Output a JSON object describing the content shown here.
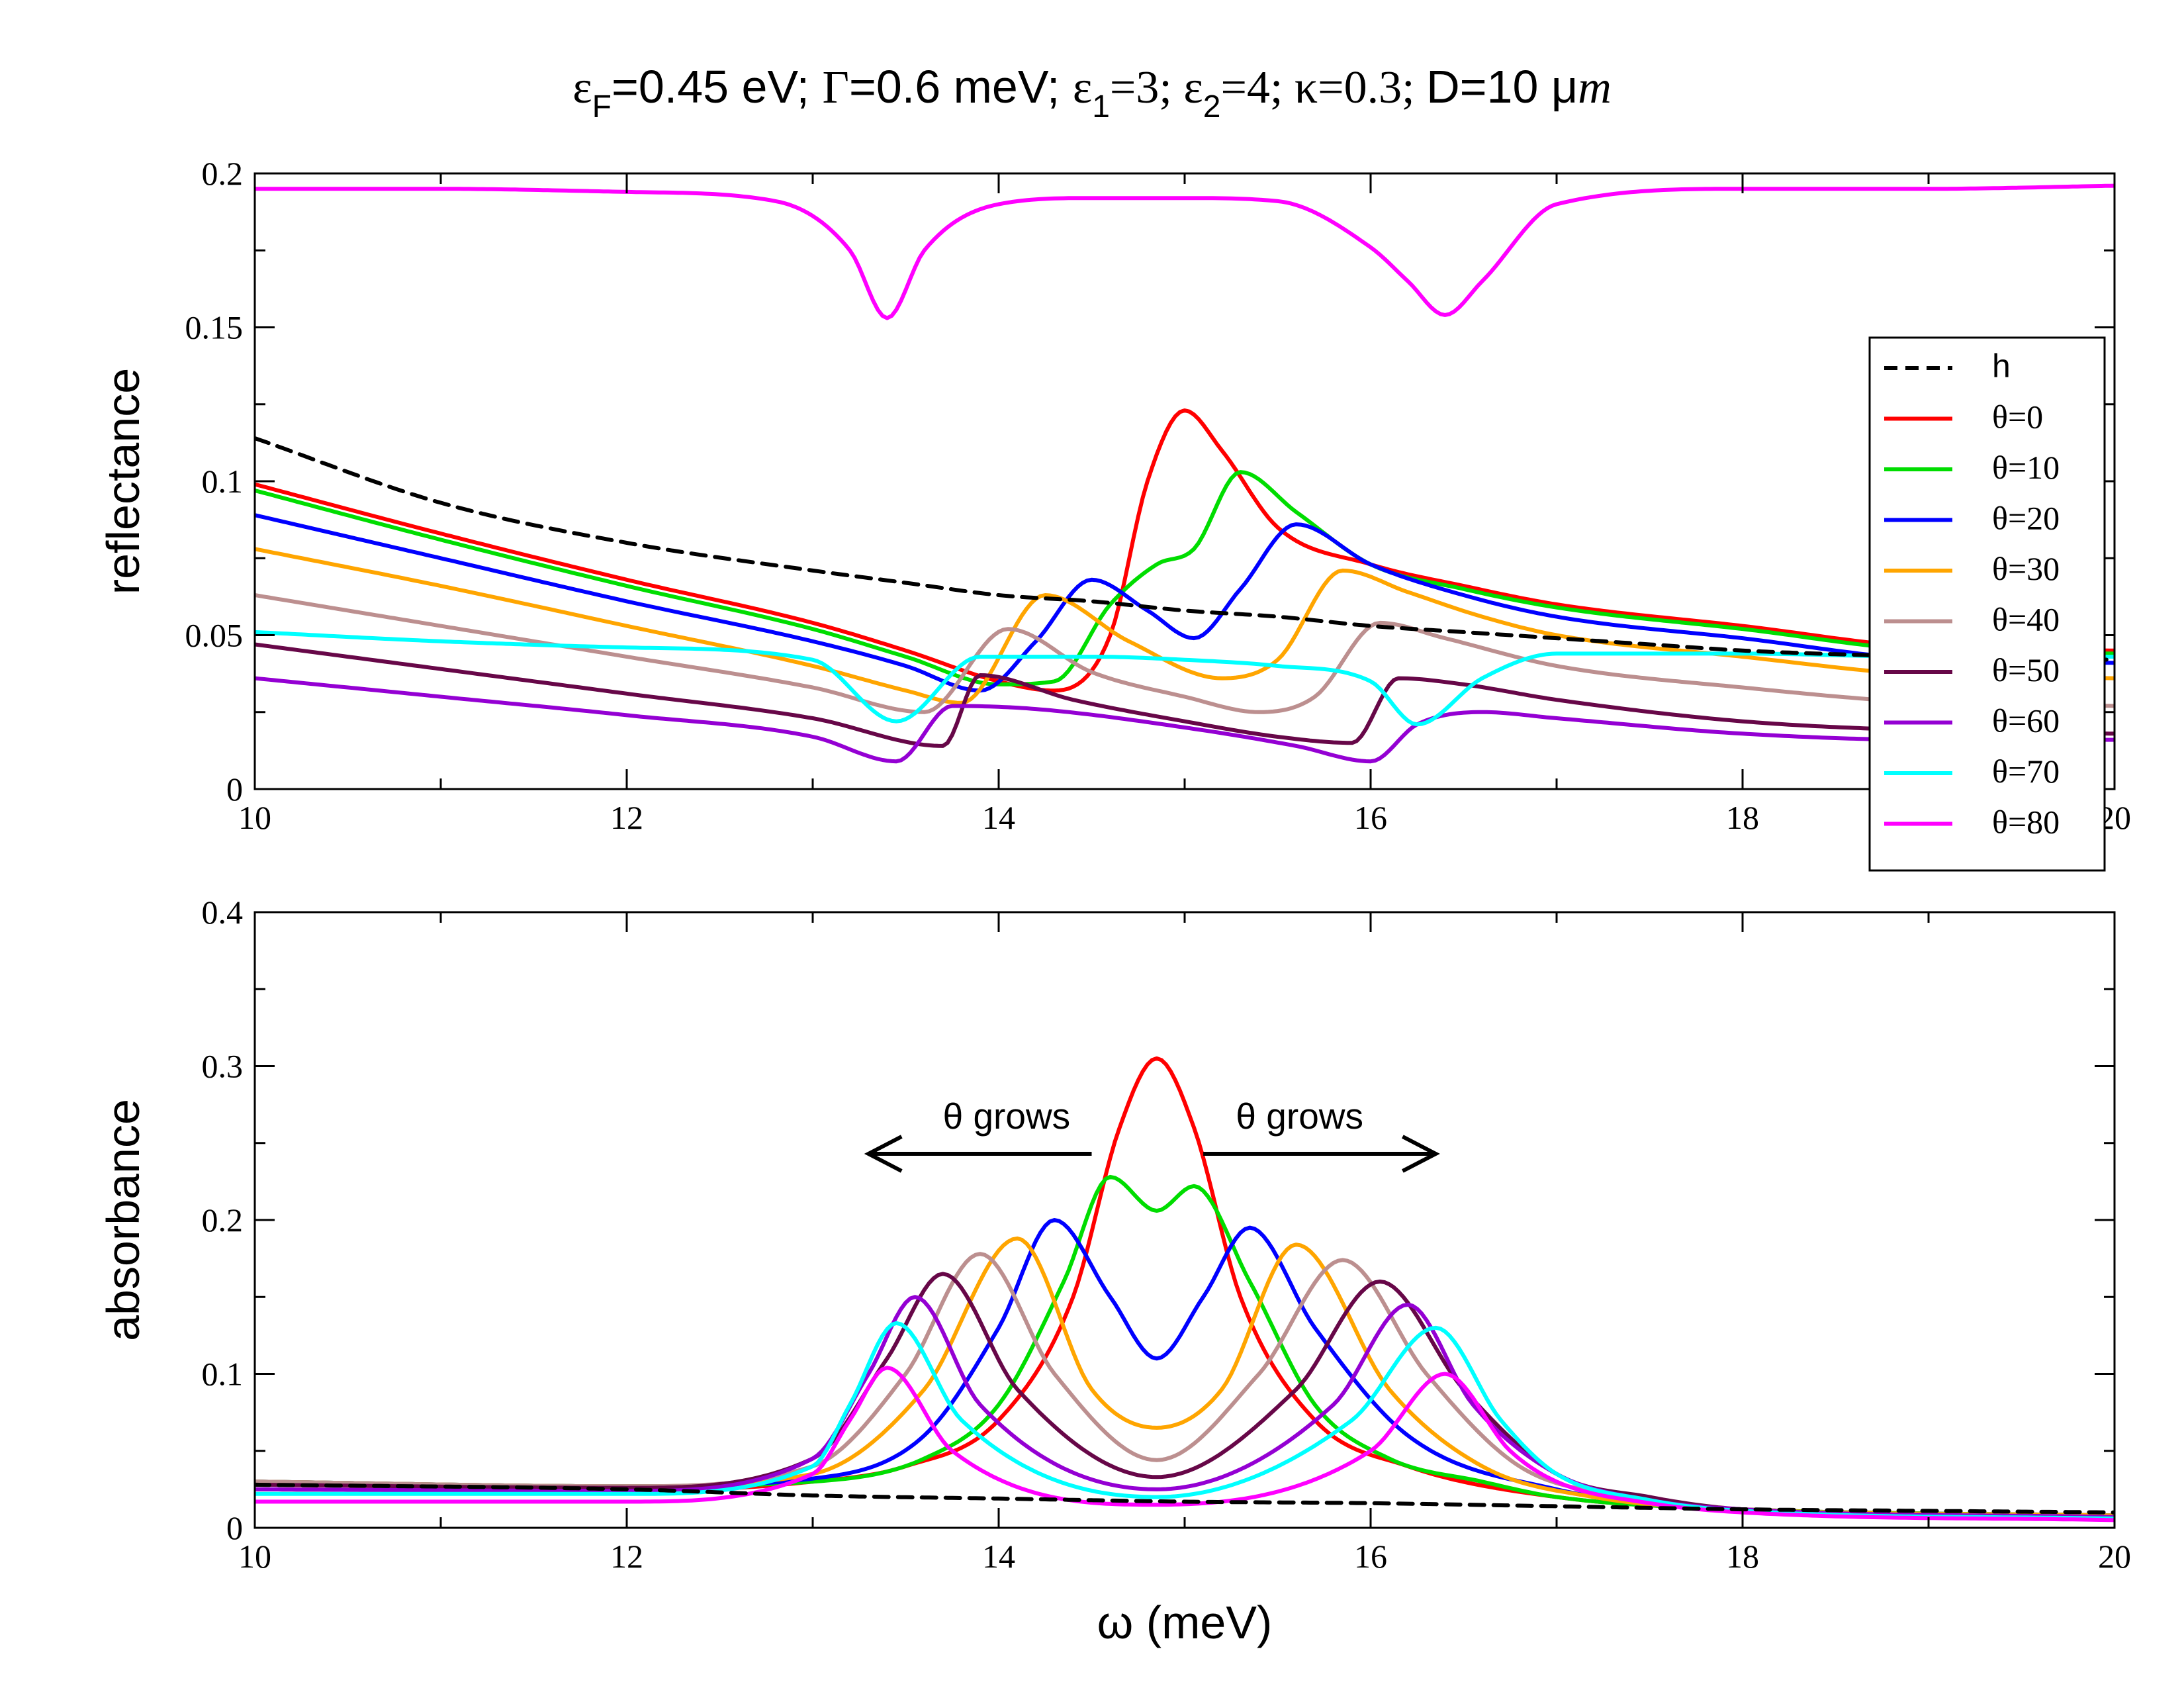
{
  "chart_data": {
    "title": "εF=0.45 eV; Γ=0.6 meV; ε1=3; ε2=4; κ=0.3; D=10 μm",
    "xlabel": "ω (meV)",
    "xlim": [
      10,
      20
    ],
    "xticks": [
      "10",
      "12",
      "14",
      "16",
      "18",
      "20"
    ],
    "legend": [
      {
        "label": "h",
        "color": "#000000",
        "dashed": true
      },
      {
        "label": "θ=0",
        "color": "#ff0000"
      },
      {
        "label": "θ=10",
        "color": "#00dd00"
      },
      {
        "label": "θ=20",
        "color": "#0000ff"
      },
      {
        "label": "θ=30",
        "color": "#ffa500"
      },
      {
        "label": "θ=40",
        "color": "#bc8f8f"
      },
      {
        "label": "θ=50",
        "color": "#670748"
      },
      {
        "label": "θ=60",
        "color": "#9400d3"
      },
      {
        "label": "θ=70",
        "color": "#00ffff"
      },
      {
        "label": "θ=80",
        "color": "#ff00ff"
      }
    ],
    "panels": [
      {
        "type": "line",
        "ylabel": "reflectance",
        "ylim": [
          0,
          0.2
        ],
        "yticks": [
          "0",
          "0.05",
          "0.1",
          "0.15",
          "0.2"
        ],
        "series": [
          {
            "name": "h",
            "x": [
              10,
              11,
              12,
              13,
              13.5,
              14,
              14.5,
              15,
              15.5,
              16,
              16.5,
              17,
              17.5,
              18,
              19,
              20
            ],
            "values": [
              0.114,
              0.093,
              0.08,
              0.071,
              0.067,
              0.063,
              0.061,
              0.058,
              0.056,
              0.053,
              0.051,
              0.049,
              0.047,
              0.045,
              0.043,
              0.042
            ]
          },
          {
            "name": "θ=0",
            "x": [
              10,
              11,
              12,
              13,
              13.5,
              14,
              14.3,
              14.6,
              14.8,
              15,
              15.2,
              15.5,
              16,
              16.5,
              17,
              18,
              19,
              20
            ],
            "values": [
              0.099,
              0.083,
              0.068,
              0.054,
              0.045,
              0.035,
              0.032,
              0.05,
              0.1,
              0.123,
              0.11,
              0.085,
              0.073,
              0.066,
              0.06,
              0.053,
              0.046,
              0.045
            ]
          },
          {
            "name": "θ=10",
            "x": [
              10,
              11,
              12,
              13,
              13.5,
              14,
              14.3,
              14.6,
              14.85,
              15.05,
              15.3,
              15.6,
              16,
              16.5,
              17,
              18,
              19,
              20
            ],
            "values": [
              0.097,
              0.081,
              0.066,
              0.052,
              0.043,
              0.034,
              0.035,
              0.06,
              0.073,
              0.078,
              0.103,
              0.09,
              0.073,
              0.065,
              0.059,
              0.052,
              0.045,
              0.044
            ]
          },
          {
            "name": "θ=20",
            "x": [
              10,
              11,
              12,
              13,
              13.5,
              13.9,
              14.2,
              14.5,
              14.8,
              15.05,
              15.3,
              15.6,
              16,
              16.5,
              17,
              18,
              19,
              20
            ],
            "values": [
              0.089,
              0.075,
              0.061,
              0.048,
              0.04,
              0.032,
              0.048,
              0.068,
              0.058,
              0.049,
              0.065,
              0.086,
              0.073,
              0.063,
              0.056,
              0.049,
              0.042,
              0.041
            ]
          },
          {
            "name": "θ=30",
            "x": [
              10,
              11,
              12,
              13,
              13.5,
              13.8,
              14.25,
              14.7,
              15.2,
              15.5,
              15.85,
              16.2,
              16.6,
              17,
              18,
              19,
              20
            ],
            "values": [
              0.078,
              0.066,
              0.053,
              0.04,
              0.032,
              0.028,
              0.063,
              0.048,
              0.036,
              0.042,
              0.071,
              0.064,
              0.056,
              0.05,
              0.043,
              0.037,
              0.036
            ]
          },
          {
            "name": "θ=40",
            "x": [
              10,
              11,
              12,
              13,
              13.6,
              14.05,
              14.5,
              15,
              15.4,
              15.7,
              16.05,
              16.4,
              17,
              18,
              19,
              20
            ],
            "values": [
              0.063,
              0.053,
              0.043,
              0.033,
              0.025,
              0.052,
              0.038,
              0.03,
              0.025,
              0.03,
              0.054,
              0.049,
              0.04,
              0.033,
              0.028,
              0.027
            ]
          },
          {
            "name": "θ=50",
            "x": [
              10,
              11,
              12,
              13,
              13.7,
              13.9,
              14.4,
              15,
              15.5,
              15.9,
              16.15,
              16.5,
              17,
              18,
              19,
              20
            ],
            "values": [
              0.047,
              0.039,
              0.031,
              0.023,
              0.014,
              0.037,
              0.029,
              0.022,
              0.017,
              0.015,
              0.036,
              0.034,
              0.029,
              0.022,
              0.019,
              0.018
            ]
          },
          {
            "name": "θ=60",
            "x": [
              10,
              11,
              12,
              13,
              13.45,
              13.75,
              14.2,
              15,
              15.6,
              16,
              16.25,
              16.6,
              17,
              18,
              19,
              20
            ],
            "values": [
              0.036,
              0.03,
              0.024,
              0.017,
              0.009,
              0.027,
              0.026,
              0.02,
              0.014,
              0.009,
              0.021,
              0.025,
              0.023,
              0.018,
              0.016,
              0.016
            ]
          },
          {
            "name": "θ=70",
            "x": [
              10,
              11,
              12,
              13,
              13.45,
              13.9,
              14.5,
              15,
              15.5,
              16,
              16.25,
              16.6,
              17,
              18,
              19,
              20
            ],
            "values": [
              0.051,
              0.048,
              0.046,
              0.042,
              0.022,
              0.043,
              0.043,
              0.042,
              0.04,
              0.035,
              0.021,
              0.036,
              0.044,
              0.044,
              0.043,
              0.043
            ]
          },
          {
            "name": "θ=80",
            "x": [
              10,
              11,
              12,
              12.8,
              13.2,
              13.4,
              13.6,
              14,
              14.5,
              15,
              15.5,
              16,
              16.2,
              16.4,
              16.6,
              17,
              18,
              19,
              20
            ],
            "values": [
              0.195,
              0.195,
              0.194,
              0.191,
              0.175,
              0.153,
              0.175,
              0.19,
              0.192,
              0.192,
              0.191,
              0.176,
              0.165,
              0.154,
              0.165,
              0.19,
              0.195,
              0.195,
              0.196
            ]
          }
        ]
      },
      {
        "type": "line",
        "ylabel": "absorbance",
        "ylim": [
          0,
          0.4
        ],
        "yticks": [
          "0",
          "0.1",
          "0.2",
          "0.3",
          "0.4"
        ],
        "annotations": [
          {
            "text": "θ grows",
            "direction": "left",
            "x_from": 14.5,
            "x_to": 13.3,
            "y": 0.243
          },
          {
            "text": "θ grows",
            "direction": "right",
            "x_from": 15.1,
            "x_to": 16.35,
            "y": 0.243
          }
        ],
        "series": [
          {
            "name": "h",
            "x": [
              10,
              12,
              13,
              14,
              15,
              16,
              17,
              18,
              19,
              20
            ],
            "values": [
              0.028,
              0.025,
              0.021,
              0.019,
              0.017,
              0.016,
              0.014,
              0.012,
              0.011,
              0.01
            ]
          },
          {
            "name": "θ=0",
            "x": [
              10,
              12,
              13,
              13.5,
              14,
              14.4,
              14.65,
              14.85,
              15.05,
              15.3,
              15.7,
              16.2,
              17,
              18,
              20
            ],
            "values": [
              0.025,
              0.024,
              0.03,
              0.04,
              0.07,
              0.15,
              0.26,
              0.305,
              0.26,
              0.15,
              0.07,
              0.04,
              0.02,
              0.012,
              0.008
            ]
          },
          {
            "name": "θ=10",
            "x": [
              10,
              12,
              13,
              13.6,
              14,
              14.35,
              14.6,
              14.85,
              15.05,
              15.35,
              15.7,
              16.1,
              16.6,
              17,
              18,
              20
            ],
            "values": [
              0.03,
              0.027,
              0.03,
              0.045,
              0.08,
              0.16,
              0.228,
              0.206,
              0.222,
              0.16,
              0.08,
              0.045,
              0.03,
              0.02,
              0.012,
              0.008
            ]
          },
          {
            "name": "θ=20",
            "x": [
              10,
              12,
              13,
              13.6,
              14,
              14.3,
              14.6,
              14.85,
              15.1,
              15.35,
              15.7,
              16.2,
              17,
              18,
              20
            ],
            "values": [
              0.03,
              0.027,
              0.032,
              0.06,
              0.13,
              0.2,
              0.15,
              0.11,
              0.15,
              0.195,
              0.13,
              0.06,
              0.025,
              0.012,
              0.008
            ]
          },
          {
            "name": "θ=30",
            "x": [
              10,
              12,
              13,
              13.6,
              14.1,
              14.5,
              14.85,
              15.2,
              15.6,
              16.1,
              16.6,
              17.2,
              18,
              20
            ],
            "values": [
              0.03,
              0.027,
              0.035,
              0.09,
              0.188,
              0.09,
              0.065,
              0.09,
              0.184,
              0.09,
              0.04,
              0.02,
              0.012,
              0.008
            ]
          },
          {
            "name": "θ=40",
            "x": [
              10,
              12,
              13,
              13.5,
              13.9,
              14.3,
              14.85,
              15.4,
              15.85,
              16.3,
              16.8,
              17.4,
              18,
              20
            ],
            "values": [
              0.03,
              0.027,
              0.04,
              0.1,
              0.178,
              0.1,
              0.044,
              0.1,
              0.174,
              0.1,
              0.04,
              0.02,
              0.012,
              0.007
            ]
          },
          {
            "name": "θ=50",
            "x": [
              10,
              12,
              13,
              13.4,
              13.7,
              14.1,
              14.85,
              15.6,
              16.05,
              16.5,
              17,
              17.5,
              18,
              20
            ],
            "values": [
              0.028,
              0.026,
              0.045,
              0.11,
              0.165,
              0.09,
              0.033,
              0.09,
              0.16,
              0.09,
              0.035,
              0.02,
              0.012,
              0.007
            ]
          },
          {
            "name": "θ=60",
            "x": [
              10,
              12,
              13,
              13.3,
              13.55,
              13.9,
              14.85,
              15.8,
              16.2,
              16.55,
              17,
              17.5,
              18,
              20
            ],
            "values": [
              0.025,
              0.024,
              0.045,
              0.1,
              0.15,
              0.08,
              0.025,
              0.08,
              0.145,
              0.08,
              0.035,
              0.018,
              0.012,
              0.007
            ]
          },
          {
            "name": "θ=70",
            "x": [
              10,
              12,
              13,
              13.2,
              13.45,
              13.8,
              14.85,
              15.9,
              16.35,
              16.7,
              17,
              17.5,
              18,
              20
            ],
            "values": [
              0.022,
              0.022,
              0.04,
              0.08,
              0.133,
              0.07,
              0.02,
              0.07,
              0.13,
              0.07,
              0.035,
              0.018,
              0.011,
              0.006
            ]
          },
          {
            "name": "θ=80",
            "x": [
              10,
              12,
              13,
              13.2,
              13.4,
              13.75,
              14.85,
              16,
              16.4,
              16.75,
              17,
              17.5,
              18,
              20
            ],
            "values": [
              0.017,
              0.017,
              0.035,
              0.07,
              0.104,
              0.05,
              0.015,
              0.05,
              0.1,
              0.05,
              0.03,
              0.016,
              0.01,
              0.005
            ]
          }
        ]
      }
    ]
  }
}
